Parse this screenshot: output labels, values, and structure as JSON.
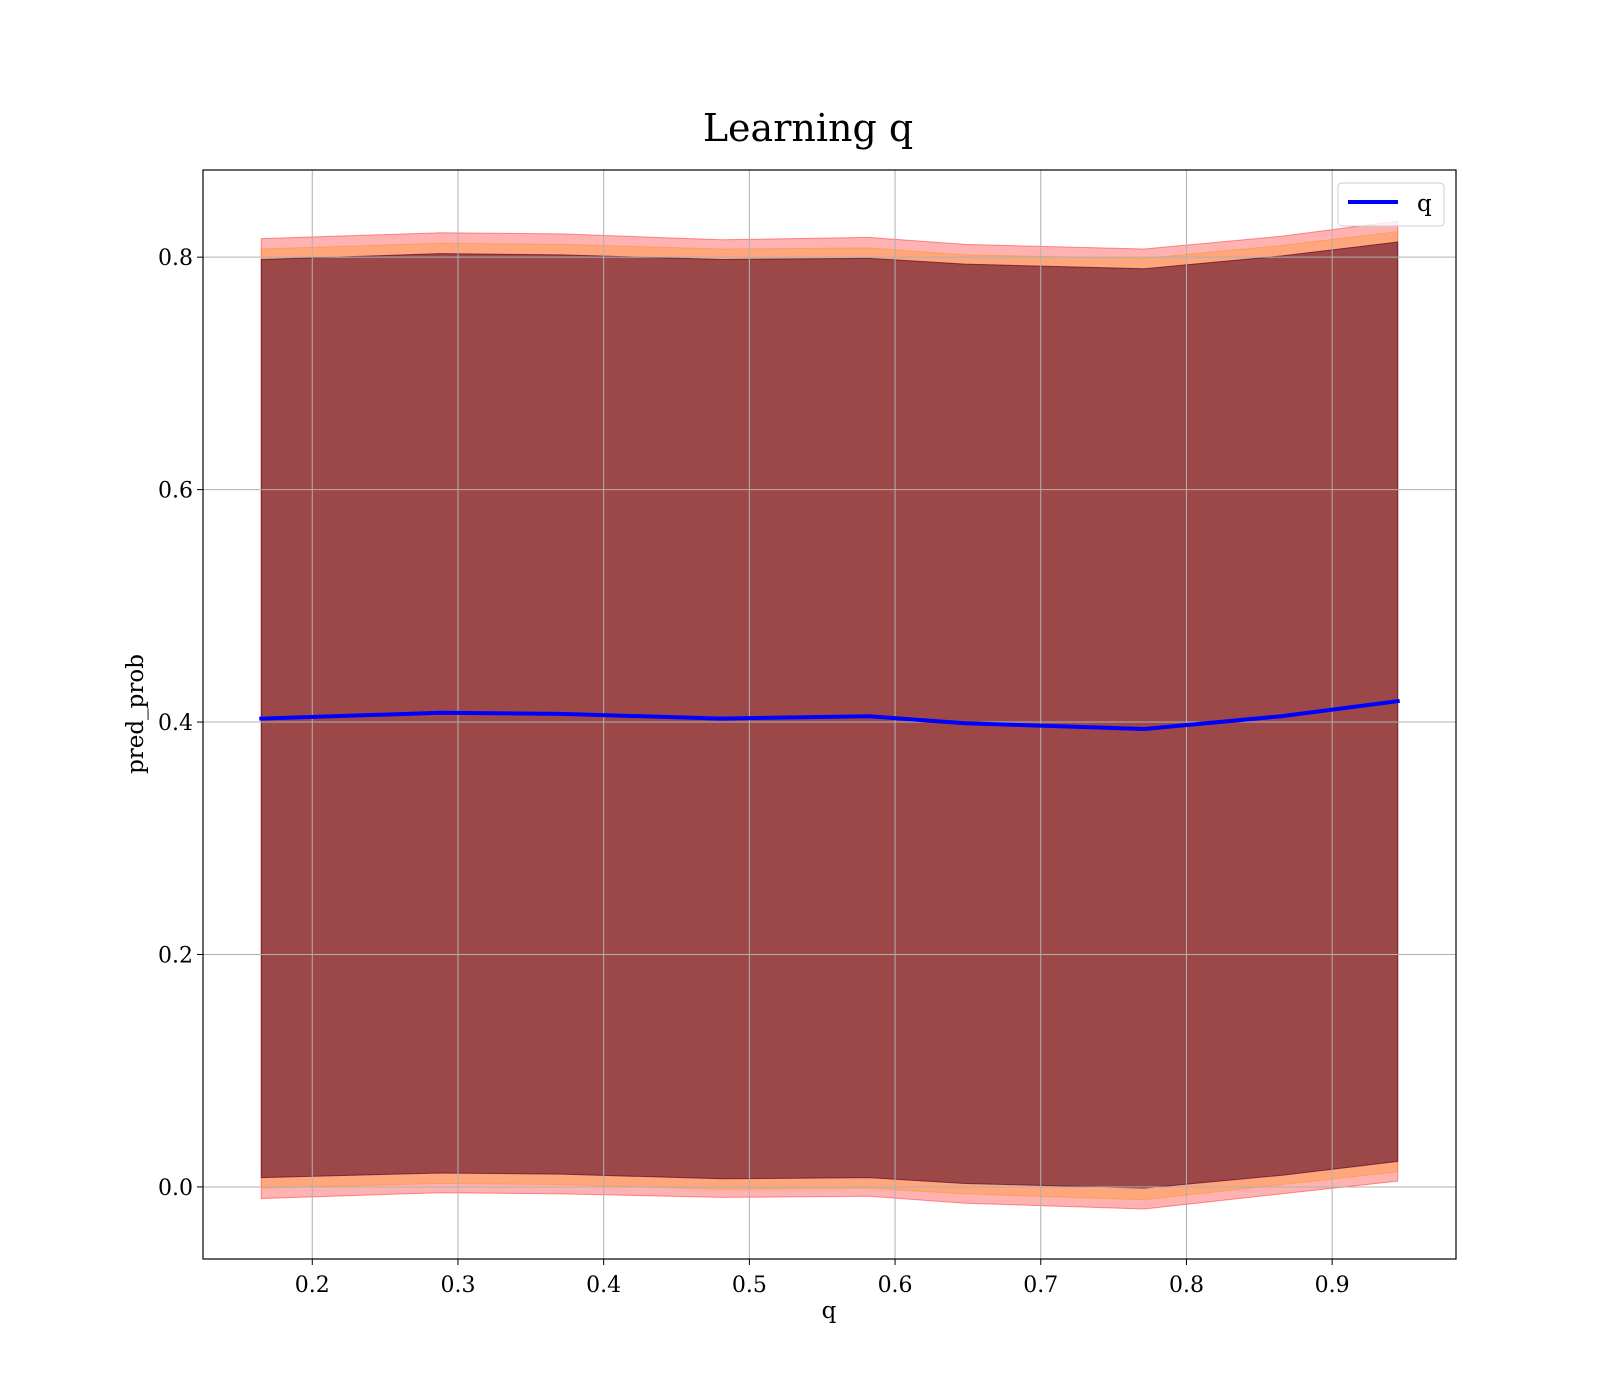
{
  "chart_data": {
    "type": "line",
    "title": "Learning q",
    "xlabel": "q",
    "ylabel": "pred_prob",
    "xlim": [
      0.125,
      0.985
    ],
    "ylim": [
      -0.062,
      0.875
    ],
    "xticks": [
      0.2,
      0.3,
      0.4,
      0.5,
      0.6,
      0.7,
      0.8,
      0.9
    ],
    "xtick_labels": [
      "0.2",
      "0.3",
      "0.4",
      "0.5",
      "0.6",
      "0.7",
      "0.8",
      "0.9"
    ],
    "yticks": [
      0.0,
      0.2,
      0.4,
      0.6,
      0.8
    ],
    "ytick_labels": [
      "0.0",
      "0.2",
      "0.4",
      "0.6",
      "0.8"
    ],
    "grid": true,
    "legend_position": "top-right",
    "x": [
      0.165,
      0.288,
      0.371,
      0.481,
      0.582,
      0.648,
      0.771,
      0.865,
      0.945
    ],
    "series": [
      {
        "name": "q",
        "color": "#0000ff",
        "values": [
          0.403,
          0.408,
          0.407,
          0.403,
          0.405,
          0.399,
          0.394,
          0.405,
          0.418
        ]
      }
    ],
    "bands": [
      {
        "color": "#ff0000",
        "opacity": 0.3,
        "lower": [
          -0.01,
          -0.005,
          -0.006,
          -0.009,
          -0.008,
          -0.014,
          -0.019,
          -0.006,
          0.005
        ],
        "upper": [
          0.816,
          0.821,
          0.82,
          0.815,
          0.817,
          0.811,
          0.807,
          0.818,
          0.831
        ]
      },
      {
        "color": "#ff8c00",
        "opacity": 0.3,
        "lower": [
          -0.001,
          0.003,
          0.002,
          -0.002,
          -0.001,
          -0.006,
          -0.011,
          0.002,
          0.013
        ],
        "upper": [
          0.807,
          0.812,
          0.811,
          0.807,
          0.808,
          0.802,
          0.799,
          0.81,
          0.822
        ]
      },
      {
        "color": "#5a0a28",
        "opacity": 0.6,
        "lower": [
          0.008,
          0.012,
          0.011,
          0.007,
          0.008,
          0.003,
          -0.001,
          0.01,
          0.022
        ],
        "upper": [
          0.798,
          0.803,
          0.802,
          0.798,
          0.799,
          0.794,
          0.79,
          0.801,
          0.813
        ]
      }
    ]
  }
}
